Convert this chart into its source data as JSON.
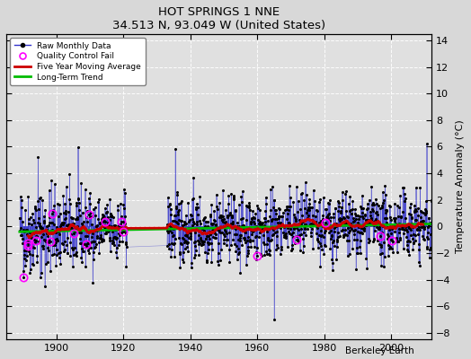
{
  "title": "HOT SPRINGS 1 NNE",
  "subtitle": "34.513 N, 93.049 W (United States)",
  "ylabel": "Temperature Anomaly (°C)",
  "credit": "Berkeley Earth",
  "xlim": [
    1885,
    2012
  ],
  "ylim": [
    -8.5,
    14.5
  ],
  "yticks": [
    -8,
    -6,
    -4,
    -2,
    0,
    2,
    4,
    6,
    8,
    10,
    12,
    14
  ],
  "xticks": [
    1900,
    1920,
    1940,
    1960,
    1980,
    2000
  ],
  "bg_color": "#e0e0e0",
  "line_color": "#3333cc",
  "ma_color": "#cc0000",
  "trend_color": "#00bb00",
  "qc_color": "#ff00ff",
  "seed": 42,
  "start_year": 1889,
  "gap_start": 1921,
  "gap_end": 1933,
  "end_year": 2011
}
